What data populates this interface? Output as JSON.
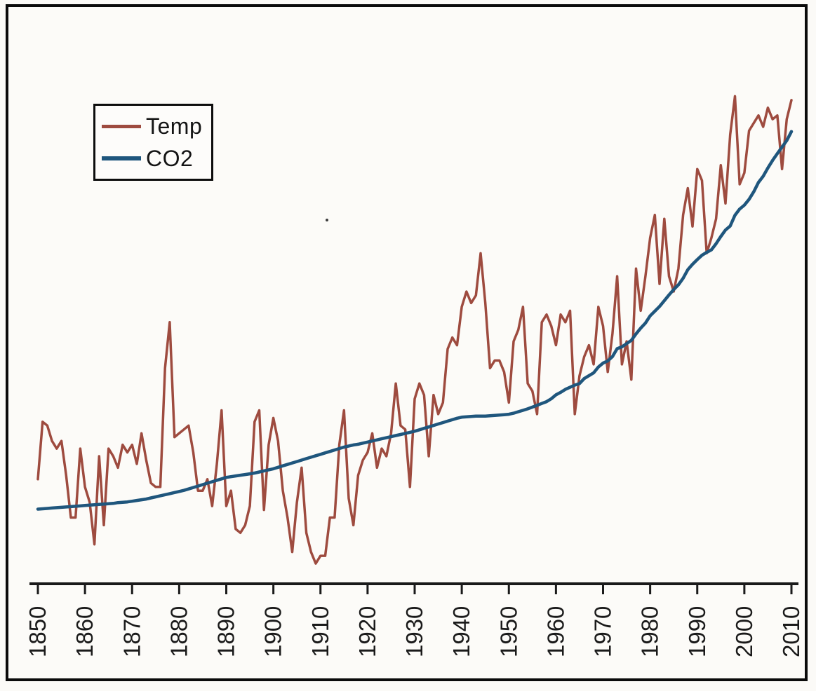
{
  "figure": {
    "background": "#fcfbf8",
    "frame_color": "#0b0b0b",
    "ink_color": "#1a1a1a"
  },
  "legend": {
    "items": [
      {
        "label": "Temp",
        "color": "#9E4B3F"
      },
      {
        "label": "CO2",
        "color": "#1F567D"
      }
    ]
  },
  "x_axis": {
    "tick_labels": [
      "1850",
      "1860",
      "1870",
      "1880",
      "1890",
      "1900",
      "1910",
      "1920",
      "1930",
      "1940",
      "1950",
      "1960",
      "1970",
      "1980",
      "1990",
      "2000",
      "2010"
    ]
  },
  "chart_data": {
    "type": "line",
    "x_range": [
      1850,
      2010
    ],
    "x_tick_interval": 10,
    "grid": false,
    "legend_position": "top-left",
    "y_axis_labels_shown": false,
    "x": [
      1850,
      1851,
      1852,
      1853,
      1854,
      1855,
      1856,
      1857,
      1858,
      1859,
      1860,
      1861,
      1862,
      1863,
      1864,
      1865,
      1866,
      1867,
      1868,
      1869,
      1870,
      1871,
      1872,
      1873,
      1874,
      1875,
      1876,
      1877,
      1878,
      1879,
      1880,
      1881,
      1882,
      1883,
      1884,
      1885,
      1886,
      1887,
      1888,
      1889,
      1890,
      1891,
      1892,
      1893,
      1894,
      1895,
      1896,
      1897,
      1898,
      1899,
      1900,
      1901,
      1902,
      1903,
      1904,
      1905,
      1906,
      1907,
      1908,
      1909,
      1910,
      1911,
      1912,
      1913,
      1914,
      1915,
      1916,
      1917,
      1918,
      1919,
      1920,
      1921,
      1922,
      1923,
      1924,
      1925,
      1926,
      1927,
      1928,
      1929,
      1930,
      1931,
      1932,
      1933,
      1934,
      1935,
      1936,
      1937,
      1938,
      1939,
      1940,
      1941,
      1942,
      1943,
      1944,
      1945,
      1946,
      1947,
      1948,
      1949,
      1950,
      1951,
      1952,
      1953,
      1954,
      1955,
      1956,
      1957,
      1958,
      1959,
      1960,
      1961,
      1962,
      1963,
      1964,
      1965,
      1966,
      1967,
      1968,
      1969,
      1970,
      1971,
      1972,
      1973,
      1974,
      1975,
      1976,
      1977,
      1978,
      1979,
      1980,
      1981,
      1982,
      1983,
      1984,
      1985,
      1986,
      1987,
      1988,
      1989,
      1990,
      1991,
      1992,
      1993,
      1994,
      1995,
      1996,
      1997,
      1998,
      1999,
      2000,
      2001,
      2002,
      2003,
      2004,
      2005,
      2006,
      2007,
      2008,
      2009,
      2010
    ],
    "series": [
      {
        "name": "Temp",
        "color": "#9E4B3F",
        "y_axis_range": [
          -0.61,
          0.68
        ],
        "values": [
          -0.37,
          -0.22,
          -0.23,
          -0.27,
          -0.29,
          -0.27,
          -0.36,
          -0.47,
          -0.47,
          -0.29,
          -0.39,
          -0.43,
          -0.54,
          -0.31,
          -0.49,
          -0.29,
          -0.31,
          -0.34,
          -0.28,
          -0.3,
          -0.28,
          -0.33,
          -0.25,
          -0.32,
          -0.38,
          -0.39,
          -0.39,
          -0.08,
          0.04,
          -0.26,
          -0.25,
          -0.24,
          -0.23,
          -0.3,
          -0.4,
          -0.4,
          -0.37,
          -0.44,
          -0.33,
          -0.19,
          -0.44,
          -0.4,
          -0.5,
          -0.51,
          -0.49,
          -0.44,
          -0.22,
          -0.19,
          -0.45,
          -0.28,
          -0.21,
          -0.27,
          -0.4,
          -0.47,
          -0.56,
          -0.43,
          -0.34,
          -0.51,
          -0.56,
          -0.59,
          -0.57,
          -0.57,
          -0.47,
          -0.47,
          -0.28,
          -0.19,
          -0.42,
          -0.49,
          -0.36,
          -0.32,
          -0.3,
          -0.25,
          -0.34,
          -0.29,
          -0.31,
          -0.25,
          -0.12,
          -0.23,
          -0.24,
          -0.39,
          -0.16,
          -0.12,
          -0.15,
          -0.31,
          -0.15,
          -0.2,
          -0.17,
          -0.03,
          0.0,
          -0.02,
          0.08,
          0.12,
          0.09,
          0.11,
          0.22,
          0.09,
          -0.08,
          -0.06,
          -0.06,
          -0.09,
          -0.17,
          -0.01,
          0.02,
          0.08,
          -0.12,
          -0.14,
          -0.2,
          0.04,
          0.06,
          0.03,
          -0.02,
          0.06,
          0.04,
          0.07,
          -0.2,
          -0.1,
          -0.05,
          -0.02,
          -0.07,
          0.08,
          0.03,
          -0.09,
          0.01,
          0.16,
          -0.07,
          -0.01,
          -0.11,
          0.18,
          0.07,
          0.16,
          0.26,
          0.32,
          0.14,
          0.31,
          0.16,
          0.12,
          0.18,
          0.32,
          0.39,
          0.29,
          0.44,
          0.41,
          0.22,
          0.26,
          0.31,
          0.45,
          0.35,
          0.53,
          0.63,
          0.4,
          0.43,
          0.54,
          0.56,
          0.58,
          0.55,
          0.6,
          0.57,
          0.58,
          0.44,
          0.57,
          0.62
        ]
      },
      {
        "name": "CO2",
        "color": "#1F567D",
        "y_axis_range": [
          268,
          405
        ],
        "values": [
          285.2,
          285.3,
          285.4,
          285.5,
          285.6,
          285.7,
          285.8,
          285.9,
          286.0,
          286.1,
          286.2,
          286.3,
          286.4,
          286.5,
          286.6,
          286.7,
          286.8,
          287.0,
          287.1,
          287.2,
          287.4,
          287.6,
          287.8,
          288.0,
          288.3,
          288.6,
          288.9,
          289.2,
          289.5,
          289.8,
          290.1,
          290.4,
          290.8,
          291.2,
          291.6,
          292.0,
          292.4,
          292.8,
          293.2,
          293.6,
          294.0,
          294.2,
          294.4,
          294.6,
          294.8,
          295.0,
          295.2,
          295.5,
          295.8,
          296.1,
          296.4,
          296.8,
          297.2,
          297.6,
          298.0,
          298.4,
          298.8,
          299.2,
          299.6,
          300.0,
          300.4,
          300.8,
          301.2,
          301.6,
          302.0,
          302.4,
          302.7,
          303.0,
          303.2,
          303.5,
          303.8,
          304.1,
          304.4,
          304.7,
          305.0,
          305.3,
          305.6,
          305.9,
          306.2,
          306.5,
          306.8,
          307.2,
          307.6,
          308.0,
          308.4,
          308.8,
          309.2,
          309.6,
          310.0,
          310.4,
          310.7,
          310.8,
          310.9,
          311.0,
          311.0,
          311.0,
          311.1,
          311.2,
          311.3,
          311.4,
          311.5,
          311.8,
          312.2,
          312.6,
          313.0,
          313.5,
          314.0,
          314.5,
          315.0,
          315.8,
          316.9,
          317.6,
          318.4,
          319.0,
          319.6,
          320.0,
          321.4,
          322.2,
          323.0,
          324.6,
          325.7,
          326.3,
          327.5,
          329.7,
          330.2,
          331.1,
          332.0,
          333.8,
          335.4,
          336.8,
          338.8,
          340.1,
          341.4,
          343.0,
          344.6,
          346.1,
          347.4,
          349.2,
          351.6,
          353.1,
          354.4,
          355.6,
          356.4,
          357.1,
          358.8,
          360.8,
          362.6,
          363.7,
          366.7,
          368.4,
          369.5,
          371.1,
          373.2,
          375.8,
          377.5,
          379.8,
          381.9,
          383.8,
          385.6,
          387.4,
          389.9
        ]
      }
    ]
  }
}
